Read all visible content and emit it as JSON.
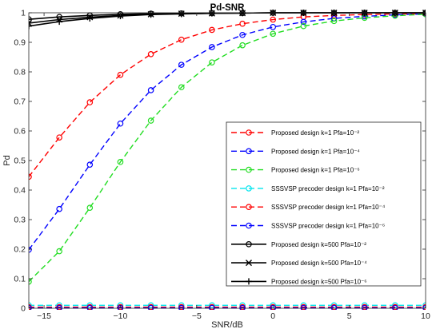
{
  "chart_data": {
    "type": "line",
    "title": "Pd-SNR",
    "xlabel": "SNR/dB",
    "ylabel": "Pd",
    "xlim": [
      -16,
      10
    ],
    "ylim": [
      0,
      1
    ],
    "xticks": [
      -15,
      -10,
      -5,
      0,
      5,
      10
    ],
    "yticks": [
      0,
      0.1,
      0.2,
      0.3,
      0.4,
      0.5,
      0.6,
      0.7,
      0.8,
      0.9,
      1
    ],
    "grid": false,
    "legend_position": "right",
    "series": [
      {
        "name": "Proposed design k=1 Pfa=10⁻²",
        "color": "#ff0000",
        "line": "dashed",
        "marker": "circle",
        "x": [
          -16,
          -14,
          -12,
          -10,
          -8,
          -6,
          -4,
          -2,
          0,
          2,
          4,
          6,
          8,
          10
        ],
        "y": [
          0.445,
          0.578,
          0.697,
          0.79,
          0.86,
          0.909,
          0.942,
          0.963,
          0.977,
          0.986,
          0.991,
          0.994,
          0.996,
          0.997
        ]
      },
      {
        "name": "Proposed design k=1 Pfa=10⁻⁴",
        "color": "#0000ff",
        "line": "dashed",
        "marker": "circle",
        "x": [
          -16,
          -14,
          -12,
          -10,
          -8,
          -6,
          -4,
          -2,
          0,
          2,
          4,
          6,
          8,
          10
        ],
        "y": [
          0.198,
          0.336,
          0.486,
          0.625,
          0.738,
          0.824,
          0.884,
          0.925,
          0.952,
          0.969,
          0.981,
          0.988,
          0.993,
          0.996
        ]
      },
      {
        "name": "Proposed design k=1 Pfa=10⁻⁶",
        "color": "#22dd22",
        "line": "dashed",
        "marker": "circle",
        "x": [
          -16,
          -14,
          -12,
          -10,
          -8,
          -6,
          -4,
          -2,
          0,
          2,
          4,
          6,
          8,
          10
        ],
        "y": [
          0.09,
          0.193,
          0.34,
          0.495,
          0.635,
          0.748,
          0.832,
          0.89,
          0.929,
          0.955,
          0.972,
          0.983,
          0.99,
          0.995
        ]
      },
      {
        "name": "SSSVSP precoder design k=1 Pfa=10⁻²",
        "color": "#00e5ee",
        "line": "dashed",
        "marker": "circle",
        "x": [
          -16,
          -14,
          -12,
          -10,
          -8,
          -6,
          -4,
          -2,
          0,
          2,
          4,
          6,
          8,
          10
        ],
        "y": [
          0.01,
          0.01,
          0.01,
          0.01,
          0.01,
          0.01,
          0.01,
          0.01,
          0.01,
          0.01,
          0.01,
          0.01,
          0.01,
          0.01
        ]
      },
      {
        "name": "SSSVSP precoder design k=1 Pfa=10⁻⁴",
        "color": "#ff0000",
        "line": "dashed",
        "marker": "circle",
        "x": [
          -16,
          -14,
          -12,
          -10,
          -8,
          -6,
          -4,
          -2,
          0,
          2,
          4,
          6,
          8,
          10
        ],
        "y": [
          0.004,
          0.004,
          0.004,
          0.004,
          0.004,
          0.004,
          0.004,
          0.004,
          0.004,
          0.004,
          0.004,
          0.004,
          0.004,
          0.004
        ]
      },
      {
        "name": "SSSVSP precoder design k=1 Pfa=10⁻⁶",
        "color": "#0000ff",
        "line": "dashed",
        "marker": "circle",
        "x": [
          -16,
          -14,
          -12,
          -10,
          -8,
          -6,
          -4,
          -2,
          0,
          2,
          4,
          6,
          8,
          10
        ],
        "y": [
          0.001,
          0.001,
          0.001,
          0.001,
          0.001,
          0.001,
          0.001,
          0.001,
          0.001,
          0.001,
          0.001,
          0.001,
          0.001,
          0.001
        ]
      },
      {
        "name": "Proposed design k=500 Pfa=10⁻²",
        "color": "#000000",
        "line": "solid",
        "marker": "circle",
        "x": [
          -16,
          -14,
          -12,
          -10,
          -8,
          -6,
          -4,
          -2,
          0,
          2,
          4,
          6,
          8,
          10
        ],
        "y": [
          0.978,
          0.986,
          0.991,
          0.995,
          0.997,
          0.998,
          0.999,
          0.999,
          1.0,
          1.0,
          1.0,
          1.0,
          1.0,
          1.0
        ]
      },
      {
        "name": "Proposed design k=500 Pfa=10⁻⁴",
        "color": "#000000",
        "line": "solid",
        "marker": "x",
        "x": [
          -16,
          -14,
          -12,
          -10,
          -8,
          -6,
          -4,
          -2,
          0,
          2,
          4,
          6,
          8,
          10
        ],
        "y": [
          0.965,
          0.977,
          0.985,
          0.991,
          0.995,
          0.997,
          0.998,
          0.999,
          1.0,
          1.0,
          1.0,
          1.0,
          1.0,
          1.0
        ]
      },
      {
        "name": "Proposed design k=500  Pfa=10⁻⁶",
        "color": "#000000",
        "line": "solid",
        "marker": "plus",
        "x": [
          -16,
          -14,
          -12,
          -10,
          -8,
          -6,
          -4,
          -2,
          0,
          2,
          4,
          6,
          8,
          10
        ],
        "y": [
          0.955,
          0.97,
          0.981,
          0.989,
          0.994,
          0.996,
          0.998,
          0.999,
          1.0,
          1.0,
          1.0,
          1.0,
          1.0,
          1.0
        ]
      }
    ]
  }
}
